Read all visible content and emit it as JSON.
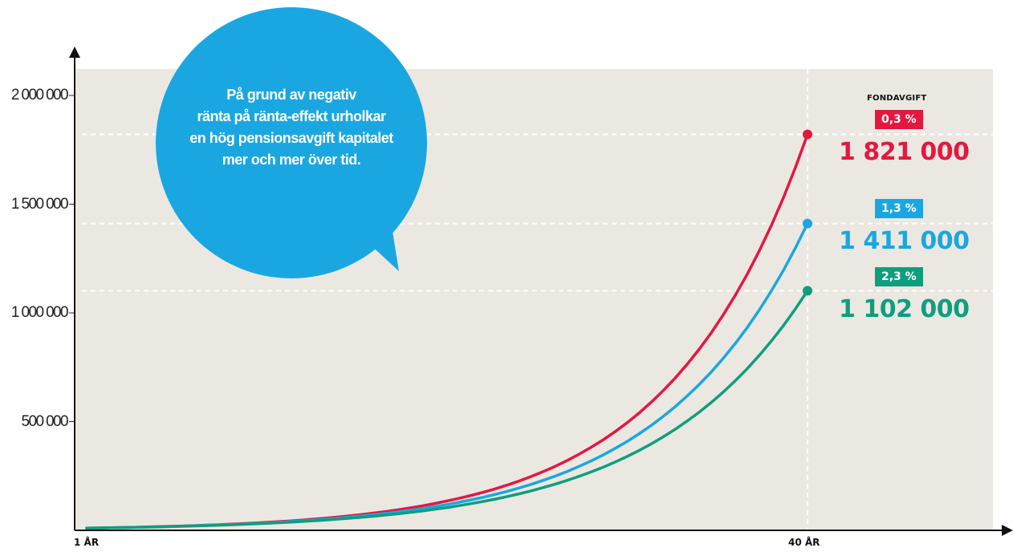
{
  "chart_data": {
    "type": "line",
    "x": [
      1,
      40
    ],
    "x_tick_labels": [
      "1 ÅR",
      "40 ÅR"
    ],
    "ylim": [
      0,
      2000000
    ],
    "y_ticks": [
      500000,
      1000000,
      1500000,
      2000000
    ],
    "y_tick_labels": [
      "500 000",
      "1 000 000",
      "1 500 000",
      "2 000 000"
    ],
    "grid": true,
    "legend_title": "FONDAVGIFT",
    "series": [
      {
        "name": "0,3 %",
        "start": 10000,
        "end": 1821000,
        "end_label": "1 821 000",
        "color": "#e4183f"
      },
      {
        "name": "1,3 %",
        "start": 10000,
        "end": 1411000,
        "end_label": "1 411 000",
        "color": "#1aa7e1"
      },
      {
        "name": "2,3 %",
        "start": 10000,
        "end": 1102000,
        "end_label": "1 102 000",
        "color": "#0f9e7d"
      }
    ],
    "annotation": {
      "lines": [
        "På grund av negativ",
        "ränta på ränta-effekt urholkar",
        "en hög pensionsavgift kapitalet",
        "mer och mer över tid."
      ],
      "color": "#1aa7e1"
    },
    "plot_background": "#ebe8e2"
  }
}
